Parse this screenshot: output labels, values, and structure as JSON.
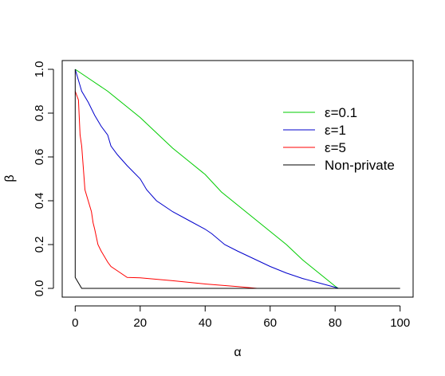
{
  "chart_data": {
    "type": "line",
    "title": "",
    "xlabel": "α",
    "ylabel": "β",
    "xlim": [
      -4,
      104
    ],
    "ylim": [
      -0.04,
      1.04
    ],
    "x_ticks": [
      0,
      20,
      40,
      60,
      80,
      100
    ],
    "x_tick_labels": [
      "0",
      "20",
      "40",
      "60",
      "80",
      "100"
    ],
    "y_ticks": [
      0,
      0.2,
      0.4,
      0.6,
      0.8,
      1
    ],
    "y_tick_labels": [
      "0.0",
      "0.2",
      "0.4",
      "0.6",
      "0.8",
      "1.0"
    ],
    "legend_position": "top-right",
    "grid": false,
    "series": [
      {
        "name": "ε=0.1",
        "color": "#00cc00",
        "points": [
          [
            0,
            1.0
          ],
          [
            5,
            0.95
          ],
          [
            10,
            0.9
          ],
          [
            15,
            0.84
          ],
          [
            20,
            0.78
          ],
          [
            25,
            0.71
          ],
          [
            30,
            0.64
          ],
          [
            35,
            0.58
          ],
          [
            40,
            0.52
          ],
          [
            45,
            0.44
          ],
          [
            50,
            0.38
          ],
          [
            55,
            0.32
          ],
          [
            60,
            0.26
          ],
          [
            65,
            0.2
          ],
          [
            70,
            0.13
          ],
          [
            75,
            0.07
          ],
          [
            80,
            0.01
          ],
          [
            81,
            0.0
          ]
        ]
      },
      {
        "name": "ε=1",
        "color": "#0000cc",
        "points": [
          [
            0,
            1.0
          ],
          [
            2,
            0.9
          ],
          [
            4,
            0.85
          ],
          [
            6,
            0.79
          ],
          [
            8,
            0.74
          ],
          [
            10,
            0.7
          ],
          [
            11,
            0.65
          ],
          [
            13,
            0.61
          ],
          [
            16,
            0.56
          ],
          [
            20,
            0.5
          ],
          [
            22,
            0.45
          ],
          [
            25,
            0.4
          ],
          [
            30,
            0.35
          ],
          [
            35,
            0.31
          ],
          [
            40,
            0.27
          ],
          [
            42,
            0.25
          ],
          [
            46,
            0.2
          ],
          [
            50,
            0.17
          ],
          [
            55,
            0.135
          ],
          [
            60,
            0.1
          ],
          [
            65,
            0.07
          ],
          [
            70,
            0.045
          ],
          [
            75,
            0.025
          ],
          [
            80,
            0.005
          ],
          [
            81,
            0.0
          ]
        ]
      },
      {
        "name": "ε=5",
        "color": "#ff0000",
        "points": [
          [
            0,
            0.9
          ],
          [
            0.5,
            0.88
          ],
          [
            1,
            0.86
          ],
          [
            1.5,
            0.7
          ],
          [
            2,
            0.65
          ],
          [
            2.5,
            0.55
          ],
          [
            3,
            0.45
          ],
          [
            4,
            0.4
          ],
          [
            5,
            0.35
          ],
          [
            5.5,
            0.3
          ],
          [
            6,
            0.27
          ],
          [
            7,
            0.2
          ],
          [
            8,
            0.17
          ],
          [
            10,
            0.12
          ],
          [
            11,
            0.1
          ],
          [
            13,
            0.08
          ],
          [
            16,
            0.05
          ],
          [
            20,
            0.048
          ],
          [
            30,
            0.035
          ],
          [
            40,
            0.02
          ],
          [
            50,
            0.008
          ],
          [
            56,
            0.0
          ]
        ]
      },
      {
        "name": "Non-private",
        "color": "#000000",
        "points": [
          [
            0,
            1.0
          ],
          [
            0,
            0.05
          ],
          [
            2,
            0.0
          ],
          [
            100,
            0.0
          ]
        ]
      }
    ]
  }
}
